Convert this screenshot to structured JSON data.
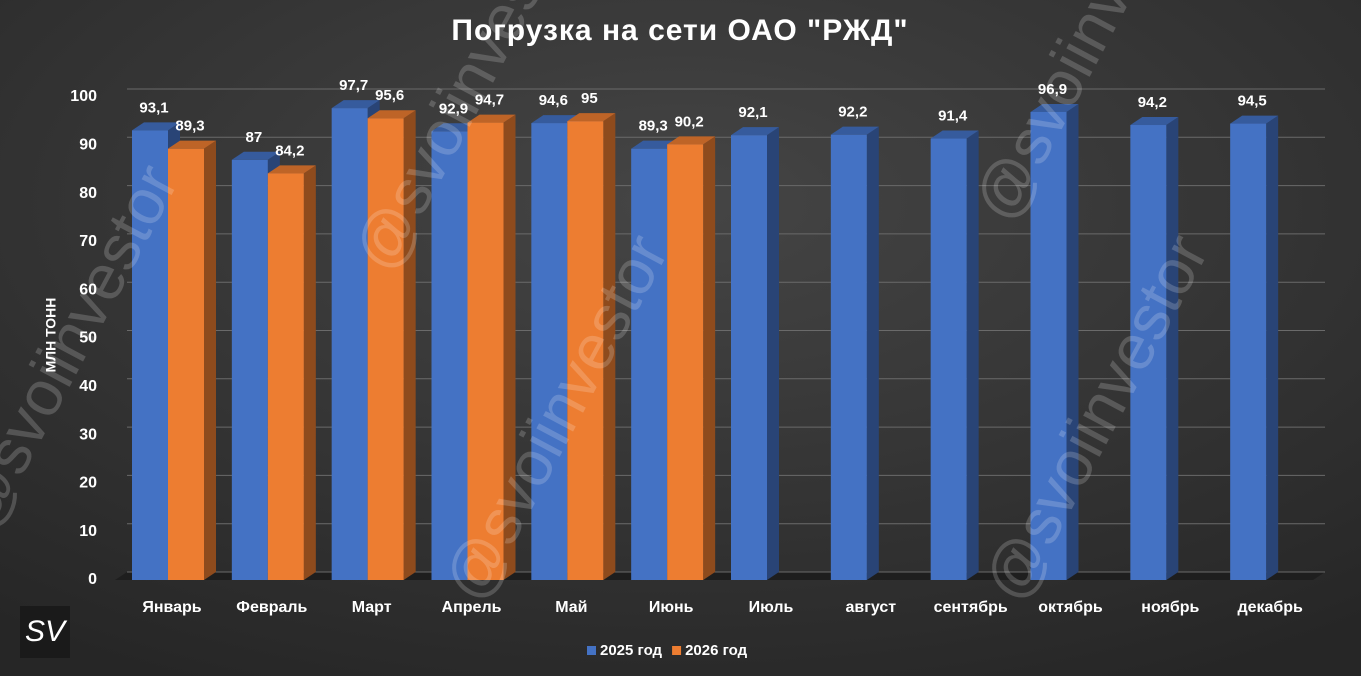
{
  "chart_data": {
    "type": "bar",
    "title": "Погрузка на сети ОАО \"РЖД\"",
    "y_label": "МЛН ТОНН",
    "categories": [
      "Январь",
      "Февраль",
      "Март",
      "Апрель",
      "Май",
      "Июнь",
      "Июль",
      "август",
      "сентябрь",
      "октябрь",
      "ноябрь",
      "декабрь"
    ],
    "series": [
      {
        "name": "2025 год",
        "color": "#4472c4",
        "values": [
          93.1,
          87,
          97.7,
          92.9,
          94.6,
          89.3,
          92.1,
          92.2,
          91.4,
          96.9,
          94.2,
          94.5
        ],
        "value_labels": [
          "93,1",
          "87",
          "97,7",
          "92,9",
          "94,6",
          "89,3",
          "92,1",
          "92,2",
          "91,4",
          "96,9",
          "94,2",
          "94,5"
        ]
      },
      {
        "name": "2026 год",
        "color": "#ed7d31",
        "values": [
          89.3,
          84.2,
          95.6,
          94.7,
          95,
          90.2,
          null,
          null,
          null,
          null,
          null,
          null
        ],
        "value_labels": [
          "89,3",
          "84,2",
          "95,6",
          "94,7",
          "95",
          "90,2",
          null,
          null,
          null,
          null,
          null,
          null
        ]
      }
    ],
    "ylim": [
      0,
      100
    ],
    "yticks": [
      0,
      10,
      20,
      30,
      40,
      50,
      60,
      70,
      80,
      90,
      100
    ],
    "grid": true,
    "legend": "bottom",
    "watermark": "@svoiinvestor",
    "logo": "SV"
  }
}
